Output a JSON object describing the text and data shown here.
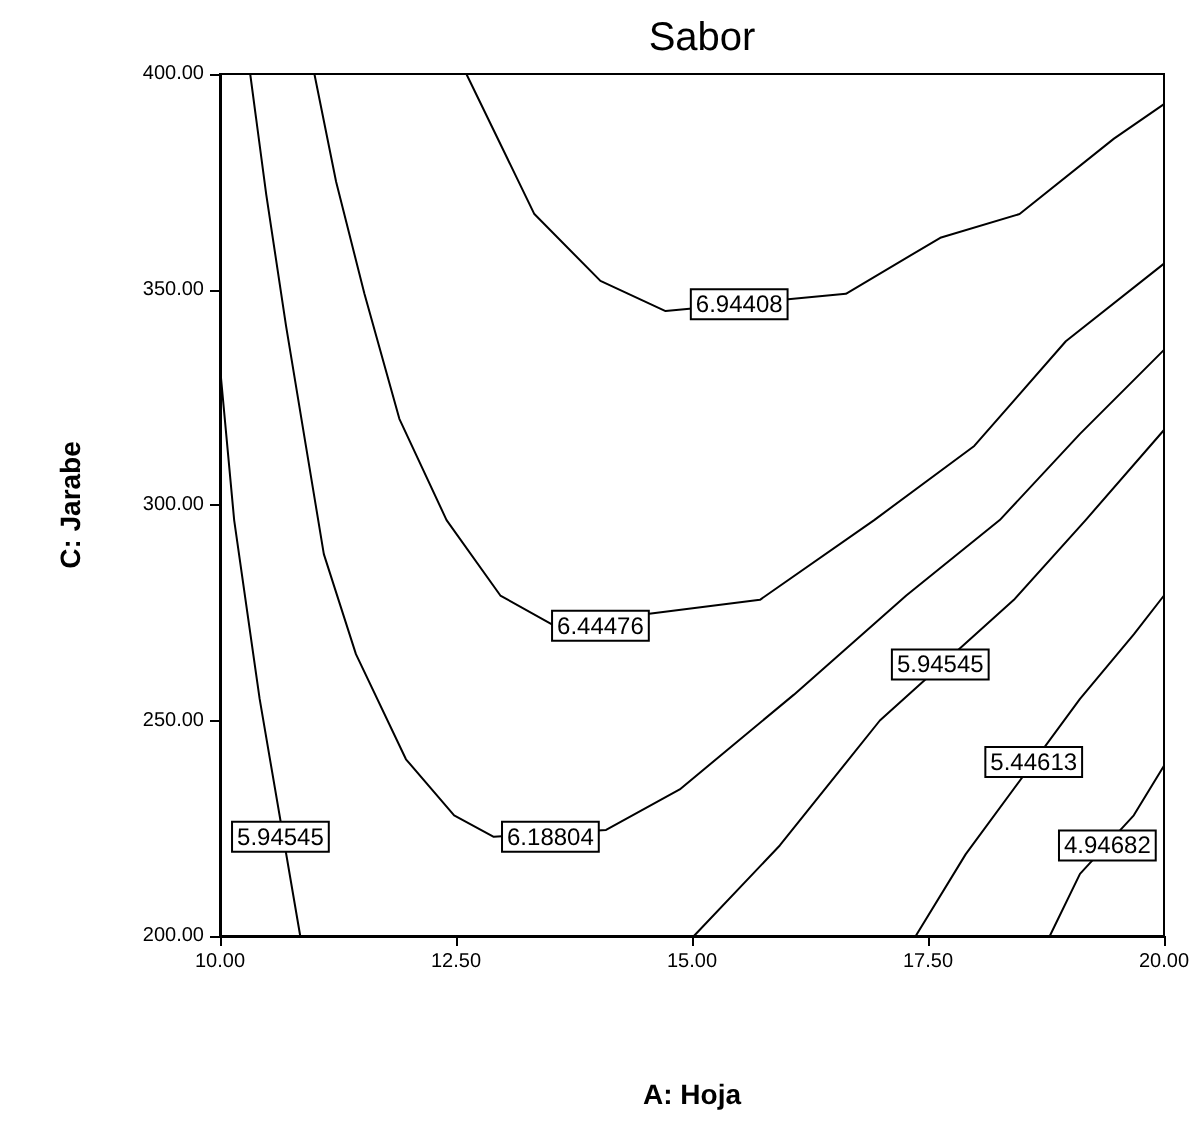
{
  "chart_data": {
    "type": "line",
    "title": "Sabor",
    "xlabel": "A: Hoja",
    "ylabel": "C: Jarabe",
    "marker": "none",
    "grid": false,
    "xlim": [
      10,
      20
    ],
    "xticks": [
      {
        "value": 10,
        "label": "10.00"
      },
      {
        "value": 12.5,
        "label": "12.50"
      },
      {
        "value": 15,
        "label": "15.00"
      },
      {
        "value": 17.5,
        "label": "17.50"
      },
      {
        "value": 20,
        "label": "20.00"
      }
    ],
    "ylim": [
      200,
      400
    ],
    "yticks": [
      {
        "value": 200,
        "label": "200.00"
      },
      {
        "value": 250,
        "label": "250.00"
      },
      {
        "value": 300,
        "label": "300.00"
      },
      {
        "value": 350,
        "label": "350.00"
      },
      {
        "value": 400,
        "label": "400.00"
      }
    ],
    "series": [
      {
        "color": "#000000",
        "x": [
          12.61,
          13.33,
          14.03,
          14.72,
          16.63,
          17.63,
          18.47,
          19.47,
          20
        ],
        "values": [
          400,
          367.5,
          352,
          345,
          349,
          362,
          367.5,
          385,
          393
        ]
      },
      {
        "color": "#000000",
        "x": [
          11.0,
          11.23,
          11.53,
          11.9,
          12.4,
          12.97,
          13.54,
          15.72,
          16.93,
          17.99,
          18.96,
          20
        ],
        "values": [
          400,
          375,
          349,
          320,
          296.5,
          279,
          272,
          278,
          296.5,
          313.7,
          338,
          356
        ]
      },
      {
        "color": "#000000",
        "x": [
          10.32,
          10.49,
          10.7,
          10.91,
          11.1,
          11.44,
          11.97,
          12.48,
          12.9,
          14.09,
          14.87,
          16.08,
          17.27,
          18.26,
          19.11,
          20
        ],
        "values": [
          400,
          372,
          341.5,
          313.7,
          288.6,
          265.4,
          241,
          228,
          223,
          224.6,
          234,
          256,
          279,
          296.5,
          316.5,
          336
        ]
      },
      {
        "color": "#000000",
        "x": [
          10,
          10.15,
          10.42,
          10.85
        ],
        "values": [
          332,
          296.5,
          255,
          200
        ]
      },
      {
        "color": "#000000",
        "x": [
          15.02,
          15.93,
          16.99,
          18.41,
          19.17,
          20
        ],
        "values": [
          200,
          221,
          250,
          278,
          296.5,
          317.4
        ]
      },
      {
        "color": "#000000",
        "x": [
          17.37,
          17.9,
          19.11,
          19.68,
          20
        ],
        "values": [
          200,
          219,
          255,
          270,
          279
        ]
      },
      {
        "color": "#000000",
        "x": [
          18.79,
          19.11,
          19.68,
          20
        ],
        "values": [
          200,
          214.4,
          228,
          239.5
        ]
      }
    ],
    "annotations": [
      {
        "text": "6.94408",
        "x": 15.5,
        "y": 346.6
      },
      {
        "text": "6.44476",
        "x": 14.03,
        "y": 272
      },
      {
        "text": "6.18804",
        "x": 13.5,
        "y": 223
      },
      {
        "text": "5.94545",
        "x": 10.64,
        "y": 223
      },
      {
        "text": "5.94545",
        "x": 17.63,
        "y": 263
      },
      {
        "text": "5.44613",
        "x": 18.62,
        "y": 240.4
      },
      {
        "text": "4.94682",
        "x": 19.4,
        "y": 221
      }
    ]
  }
}
